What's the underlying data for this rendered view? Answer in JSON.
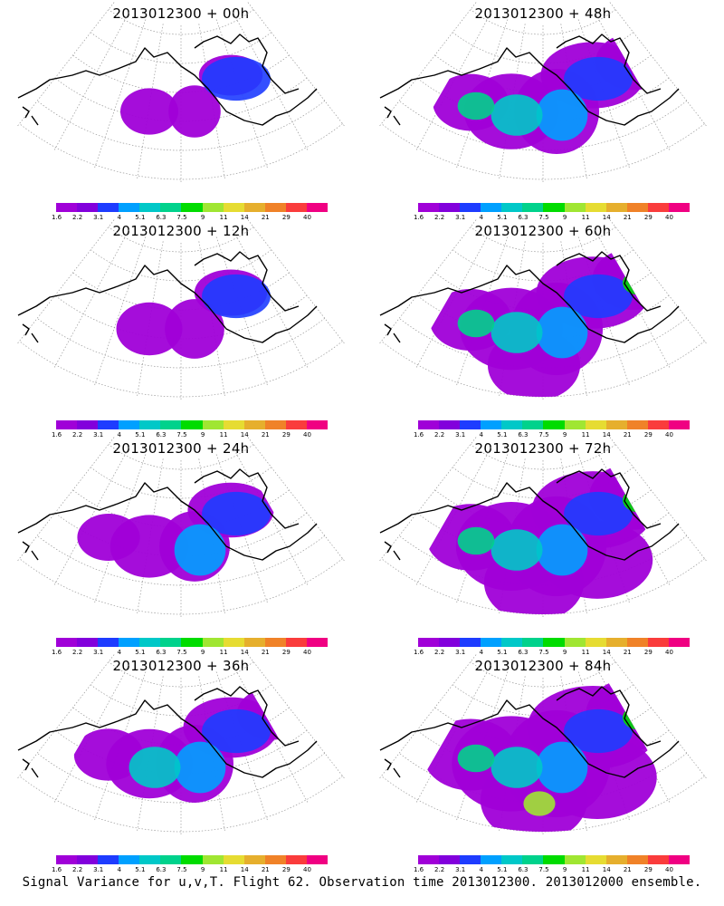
{
  "panels": [
    {
      "title": "2013012300 + 00h",
      "intensity": 0.1
    },
    {
      "title": "2013012300 + 48h",
      "intensity": 0.55
    },
    {
      "title": "2013012300 + 12h",
      "intensity": 0.2
    },
    {
      "title": "2013012300 + 60h",
      "intensity": 0.65
    },
    {
      "title": "2013012300 + 24h",
      "intensity": 0.35
    },
    {
      "title": "2013012300 + 72h",
      "intensity": 0.75
    },
    {
      "title": "2013012300 + 36h",
      "intensity": 0.45
    },
    {
      "title": "2013012300 + 84h",
      "intensity": 0.85
    }
  ],
  "colorbar": {
    "colors": [
      "#a000d8",
      "#8200dc",
      "#1e3cff",
      "#00a0ff",
      "#00c8c8",
      "#00d28c",
      "#00dc00",
      "#a0e632",
      "#e6dc32",
      "#e6af2d",
      "#f08228",
      "#fa3c3c",
      "#f00082"
    ],
    "labels": [
      "1.6",
      "2.2",
      "3.1",
      "4",
      "5.1",
      "6.3",
      "7.5",
      "9",
      "11",
      "14",
      "21",
      "29",
      "40"
    ]
  },
  "footer": "Signal Variance for u,v,T. Flight 62. Observation time 2013012300. 2013012000 ensemble."
}
